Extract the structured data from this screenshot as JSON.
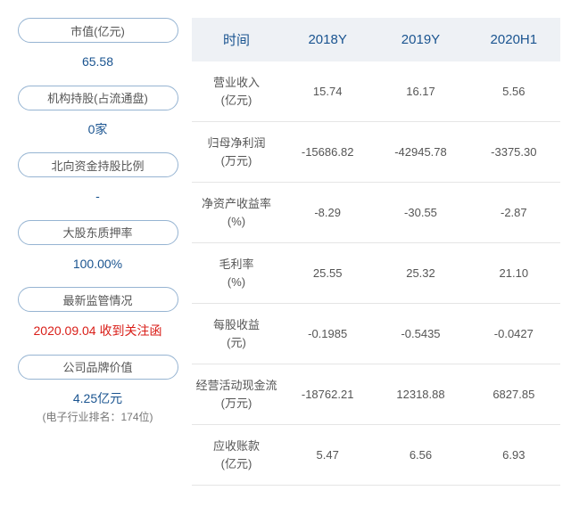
{
  "left": [
    {
      "label": "市值(亿元)",
      "value": "65.58",
      "red": false,
      "sub": null
    },
    {
      "label": "机构持股(占流通盘)",
      "value": "0家",
      "red": false,
      "sub": null
    },
    {
      "label": "北向资金持股比例",
      "value": "-",
      "red": false,
      "sub": null
    },
    {
      "label": "大股东质押率",
      "value": "100.00%",
      "red": false,
      "sub": null
    },
    {
      "label": "最新监管情况",
      "value": "2020.09.04 收到关注函",
      "red": true,
      "sub": null
    },
    {
      "label": "公司品牌价值",
      "value": "4.25亿元",
      "red": false,
      "sub": "(电子行业排名：174位)"
    }
  ],
  "table": {
    "headers": [
      "时间",
      "2018Y",
      "2019Y",
      "2020H1"
    ],
    "rows": [
      {
        "name": "营业收入",
        "unit": "(亿元)",
        "v": [
          "15.74",
          "16.17",
          "5.56"
        ]
      },
      {
        "name": "归母净利润",
        "unit": "(万元)",
        "v": [
          "-15686.82",
          "-42945.78",
          "-3375.30"
        ]
      },
      {
        "name": "净资产收益率",
        "unit": "(%)",
        "v": [
          "-8.29",
          "-30.55",
          "-2.87"
        ]
      },
      {
        "name": "毛利率",
        "unit": "(%)",
        "v": [
          "25.55",
          "25.32",
          "21.10"
        ]
      },
      {
        "name": "每股收益",
        "unit": "(元)",
        "v": [
          "-0.1985",
          "-0.5435",
          "-0.0427"
        ]
      },
      {
        "name": "经营活动现金流",
        "unit": "(万元)",
        "v": [
          "-18762.21",
          "12318.88",
          "6827.85"
        ]
      },
      {
        "name": "应收账款",
        "unit": "(亿元)",
        "v": [
          "5.47",
          "6.56",
          "6.93"
        ]
      }
    ]
  },
  "colors": {
    "pill_border": "#96b4d2",
    "link_blue": "#1a5490",
    "alert_red": "#d91e18",
    "row_border": "#e5e5e5",
    "head_bg": "#eef1f5",
    "text_gray": "#555"
  }
}
